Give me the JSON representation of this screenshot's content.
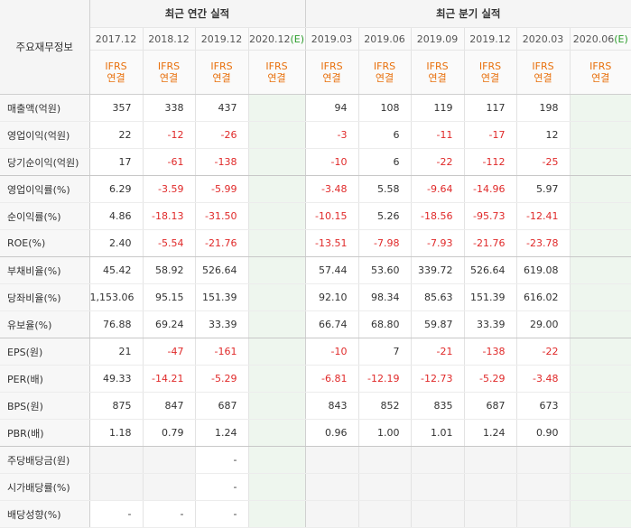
{
  "header": {
    "label_col": "주요재무정보",
    "annual_title": "최근 연간 실적",
    "quarterly_title": "최근 분기 실적",
    "annual_periods": [
      "2017.12",
      "2018.12",
      "2019.12",
      "2020.12(E)"
    ],
    "quarterly_periods": [
      "2019.03",
      "2019.06",
      "2019.09",
      "2019.12",
      "2020.03",
      "2020.06(E)"
    ],
    "ifrs_top": "IFRS",
    "ifrs_bottom": "연결"
  },
  "rows": [
    {
      "label": "매출액(억원)",
      "values": [
        "357",
        "338",
        "437",
        "",
        "94",
        "108",
        "119",
        "117",
        "198",
        ""
      ]
    },
    {
      "label": "영업이익(억원)",
      "values": [
        "22",
        "-12",
        "-26",
        "",
        "-3",
        "6",
        "-11",
        "-17",
        "12",
        ""
      ]
    },
    {
      "label": "당기순이익(억원)",
      "values": [
        "17",
        "-61",
        "-138",
        "",
        "-10",
        "6",
        "-22",
        "-112",
        "-25",
        ""
      ]
    },
    {
      "label": "영업이익률(%)",
      "values": [
        "6.29",
        "-3.59",
        "-5.99",
        "",
        "-3.48",
        "5.58",
        "-9.64",
        "-14.96",
        "5.97",
        ""
      ]
    },
    {
      "label": "순이익률(%)",
      "values": [
        "4.86",
        "-18.13",
        "-31.50",
        "",
        "-10.15",
        "5.26",
        "-18.56",
        "-95.73",
        "-12.41",
        ""
      ]
    },
    {
      "label": "ROE(%)",
      "values": [
        "2.40",
        "-5.54",
        "-21.76",
        "",
        "-13.51",
        "-7.98",
        "-7.93",
        "-21.76",
        "-23.78",
        ""
      ]
    },
    {
      "label": "부채비율(%)",
      "values": [
        "45.42",
        "58.92",
        "526.64",
        "",
        "57.44",
        "53.60",
        "339.72",
        "526.64",
        "619.08",
        ""
      ]
    },
    {
      "label": "당좌비율(%)",
      "values": [
        "1,153.06",
        "95.15",
        "151.39",
        "",
        "92.10",
        "98.34",
        "85.63",
        "151.39",
        "616.02",
        ""
      ]
    },
    {
      "label": "유보율(%)",
      "values": [
        "76.88",
        "69.24",
        "33.39",
        "",
        "66.74",
        "68.80",
        "59.87",
        "33.39",
        "29.00",
        ""
      ]
    },
    {
      "label": "EPS(원)",
      "values": [
        "21",
        "-47",
        "-161",
        "",
        "-10",
        "7",
        "-21",
        "-138",
        "-22",
        ""
      ]
    },
    {
      "label": "PER(배)",
      "values": [
        "49.33",
        "-14.21",
        "-5.29",
        "",
        "-6.81",
        "-12.19",
        "-12.73",
        "-5.29",
        "-3.48",
        ""
      ]
    },
    {
      "label": "BPS(원)",
      "values": [
        "875",
        "847",
        "687",
        "",
        "843",
        "852",
        "835",
        "687",
        "673",
        ""
      ]
    },
    {
      "label": "PBR(배)",
      "values": [
        "1.18",
        "0.79",
        "1.24",
        "",
        "0.96",
        "1.00",
        "1.01",
        "1.24",
        "0.90",
        ""
      ]
    },
    {
      "label": "주당배당금(원)",
      "values": [
        "",
        "",
        "-",
        "",
        "",
        "",
        "",
        "",
        "",
        ""
      ]
    },
    {
      "label": "시가배당률(%)",
      "values": [
        "",
        "",
        "-",
        "",
        "",
        "",
        "",
        "",
        "",
        ""
      ]
    },
    {
      "label": "배당성향(%)",
      "values": [
        "-",
        "-",
        "-",
        "",
        "",
        "",
        "",
        "",
        "",
        ""
      ]
    }
  ],
  "colors": {
    "negative": "#e02a2a",
    "ifrs": "#e8700c",
    "estimate_bg": "#eef6ee"
  }
}
